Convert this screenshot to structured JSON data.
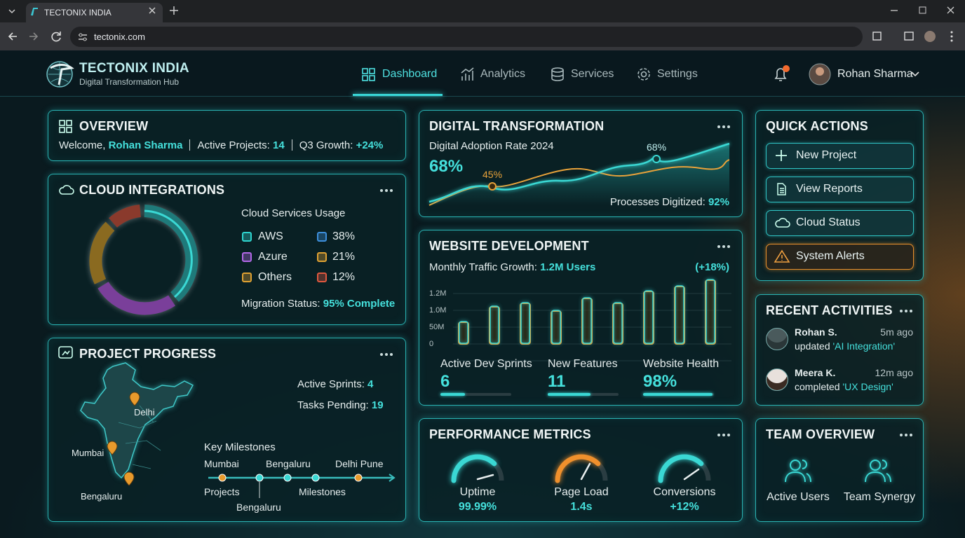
{
  "browser": {
    "tab_title": "TECTONIX INDIA",
    "url": "tectonix.com"
  },
  "header": {
    "brand": "TECTONIX INDIA",
    "tagline": "Digital Transformation Hub",
    "nav": [
      "Dashboard",
      "Analytics",
      "Services",
      "Settings"
    ],
    "user": "Rohan Sharma"
  },
  "overview": {
    "title": "OVERVIEW",
    "welcome": "Welcome,",
    "user": "Rohan Sharma",
    "projects_label": "Active Projects:",
    "projects": 14,
    "growth_label": "Q3 Growth:",
    "growth": "+24%"
  },
  "cloud": {
    "title": "CLOUD INTEGRATIONS",
    "legend_title": "Cloud Services Usage",
    "services": [
      {
        "name": "AWS",
        "color": "#2fd6d0"
      },
      {
        "name": "Azure",
        "color": "#b368e8"
      },
      {
        "name": "Others",
        "color": "#e0a232"
      }
    ],
    "shares": [
      {
        "label": "38%",
        "color": "#3d8fdc"
      },
      {
        "label": "21%",
        "color": "#e0a232"
      },
      {
        "label": "12%",
        "color": "#e0583f"
      }
    ],
    "migration_label": "Migration Status:",
    "migration": "95% Complete"
  },
  "project": {
    "title": "PROJECT PROGRESS",
    "sprints_label": "Active Sprints:",
    "sprints": 4,
    "pending_label": "Tasks Pending:",
    "pending": 19,
    "cities": [
      "Delhi",
      "Mumbai",
      "Bengaluru"
    ],
    "milestones_title": "Key Milestones",
    "milestones_top": [
      "Mumbai",
      "Bengaluru",
      "Delhi Pune"
    ],
    "milestones_bottom": [
      "Projects",
      "Bengaluru",
      "Milestones"
    ]
  },
  "digital": {
    "title": "DIGITAL TRANSFORMATION",
    "subtitle": "Digital Adoption Rate 2024",
    "rate": "68%",
    "annotations": [
      "45%",
      "68%"
    ],
    "processes_label": "Processes Digitized:",
    "processes": "92%"
  },
  "website": {
    "title": "WEBSITE DEVELOPMENT",
    "traffic_label": "Monthly Traffic Growth:",
    "traffic": "1.2M Users",
    "change": "(+18%)",
    "axis_labels": [
      "1.2M",
      "1.0M",
      "50M",
      "0"
    ],
    "stats": [
      {
        "label": "Active Dev Sprints",
        "value": 6
      },
      {
        "label": "New Features",
        "value": 11
      },
      {
        "label": "Website Health",
        "value": "98%"
      }
    ]
  },
  "performance": {
    "title": "PERFORMANCE METRICS",
    "gauges": [
      {
        "label": "Uptime",
        "value": "99.99%"
      },
      {
        "label": "Page Load",
        "value": "1.4s"
      },
      {
        "label": "Conversions",
        "value": "+12%"
      }
    ]
  },
  "quick_actions": {
    "title": "QUICK ACTIONS",
    "actions": [
      "New Project",
      "View Reports",
      "Cloud Status",
      "System Alerts"
    ]
  },
  "recent": {
    "title": "RECENT ACTIVITIES",
    "items": [
      {
        "name": "Rohan S.",
        "time": "5m ago",
        "action": "updated",
        "target": "'AI Integration'"
      },
      {
        "name": "Meera K.",
        "time": "12m ago",
        "action": "completed",
        "target": "'UX Design'"
      }
    ]
  },
  "team": {
    "title": "TEAM OVERVIEW",
    "items": [
      "Active Users",
      "Team Synergy"
    ]
  }
}
